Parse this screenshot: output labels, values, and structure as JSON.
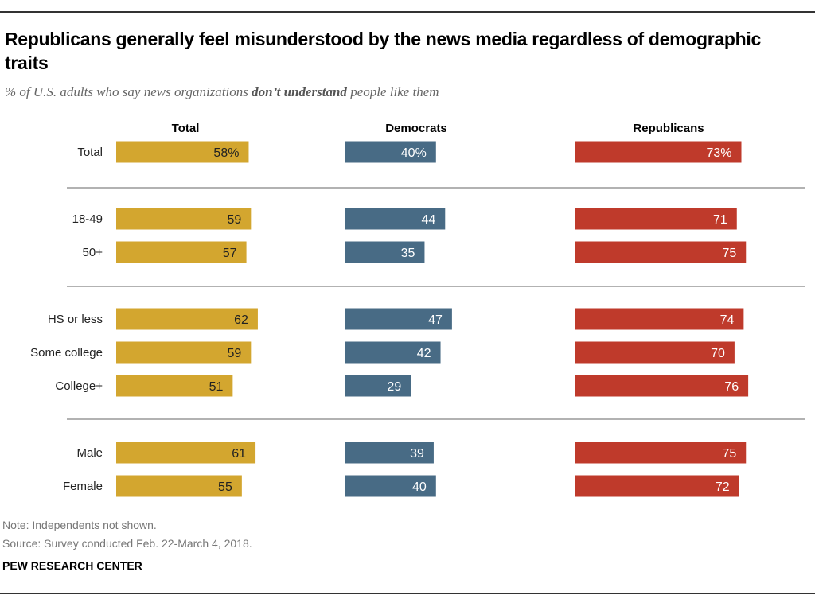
{
  "title": "Republicans generally feel misunderstood by the news media regardless of demographic traits",
  "subtitle_pre": "% of U.S. adults who say news organizations ",
  "subtitle_bold": "don’t understand",
  "subtitle_post": " people like them",
  "note": "Note: Independents not shown.",
  "source": "Source: Survey conducted Feb. 22-March 4, 2018.",
  "brand": "PEW RESEARCH CENTER",
  "chart_data": {
    "type": "bar",
    "orientation": "horizontal",
    "title": "Republicans generally feel misunderstood by the news media regardless of demographic traits",
    "categories": [
      "Total",
      "18-49",
      "50+",
      "HS or less",
      "Some college",
      "College+",
      "Male",
      "Female"
    ],
    "groups": [
      [
        "Total"
      ],
      [
        "18-49",
        "50+"
      ],
      [
        "HS or less",
        "Some college",
        "College+"
      ],
      [
        "Male",
        "Female"
      ]
    ],
    "series": [
      {
        "name": "Total",
        "color": "#d3a62f",
        "label_color": "#222222",
        "values": [
          58,
          59,
          57,
          62,
          59,
          51,
          61,
          55
        ]
      },
      {
        "name": "Democrats",
        "color": "#486b85",
        "label_color": "#ffffff",
        "values": [
          40,
          44,
          35,
          47,
          42,
          29,
          39,
          40
        ]
      },
      {
        "name": "Republicans",
        "color": "#bf3a2b",
        "label_color": "#ffffff",
        "values": [
          73,
          71,
          75,
          74,
          70,
          76,
          75,
          72
        ]
      }
    ],
    "first_label_suffix": "%",
    "xlim": [
      0,
      100
    ],
    "grid": false,
    "legend": "column headers"
  }
}
